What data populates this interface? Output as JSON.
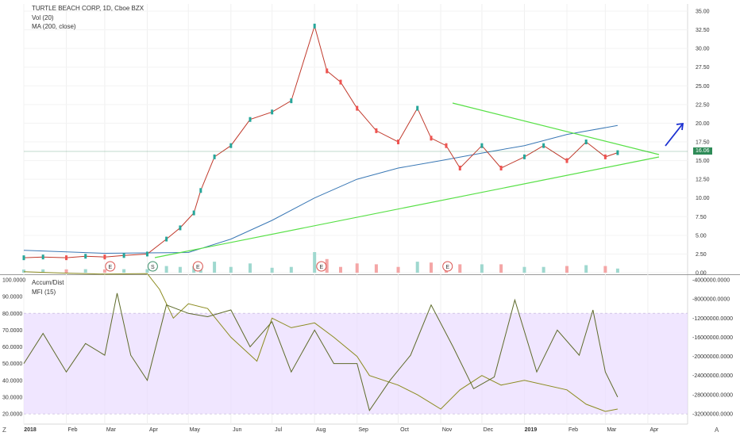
{
  "header": {
    "symbol": "TURTLE BEACH CORP, 1D, Cboe BZX",
    "vol": "Vol (20)",
    "ma": "MA (200, close)",
    "indicator1": "Accum/Dist",
    "indicator2": "MFI (15)"
  },
  "price_badge": "16.06",
  "bottom_left": "Z",
  "bottom_right": "A",
  "chart_data": [
    {
      "type": "line",
      "title": "TURTLE BEACH CORP, 1D, Cboe BZX",
      "yticks": [
        "35.00",
        "32.50",
        "30.00",
        "27.50",
        "25.00",
        "22.50",
        "20.00",
        "17.50",
        "15.00",
        "12.50",
        "10.00",
        "7.50",
        "5.00",
        "2.50",
        "0.00"
      ],
      "ylim": [
        0,
        35
      ],
      "xticks": [
        "2018",
        "Feb",
        "Mar",
        "Apr",
        "May",
        "Jun",
        "Jul",
        "Aug",
        "Sep",
        "Oct",
        "Nov",
        "Dec",
        "2019",
        "Feb",
        "Mar",
        "Apr"
      ],
      "current_price": 16.06,
      "series": [
        {
          "name": "Price",
          "x": [
            "2018-01-01",
            "2018-01-15",
            "2018-02-01",
            "2018-02-15",
            "2018-03-01",
            "2018-03-15",
            "2018-04-01",
            "2018-04-15",
            "2018-04-25",
            "2018-05-05",
            "2018-05-10",
            "2018-05-20",
            "2018-06-01",
            "2018-06-15",
            "2018-07-01",
            "2018-07-15",
            "2018-08-01",
            "2018-08-10",
            "2018-08-20",
            "2018-09-01",
            "2018-09-15",
            "2018-10-01",
            "2018-10-15",
            "2018-10-25",
            "2018-11-05",
            "2018-11-15",
            "2018-12-01",
            "2018-12-15",
            "2019-01-01",
            "2019-01-15",
            "2019-02-01",
            "2019-02-15",
            "2019-03-01",
            "2019-03-10"
          ],
          "values": [
            2.0,
            2.1,
            2.0,
            2.2,
            2.1,
            2.3,
            2.5,
            4.5,
            6.0,
            8.0,
            11.0,
            15.5,
            17.0,
            20.5,
            21.5,
            23.0,
            33.0,
            27.0,
            25.5,
            22.0,
            19.0,
            17.5,
            22.0,
            18.0,
            17.0,
            14.0,
            17.0,
            14.0,
            15.5,
            17.0,
            15.0,
            17.5,
            15.5,
            16.06
          ]
        },
        {
          "name": "MA (200, close)",
          "x": [
            "2018-01-01",
            "2018-03-01",
            "2018-05-01",
            "2018-06-01",
            "2018-07-01",
            "2018-08-01",
            "2018-09-01",
            "2018-10-01",
            "2018-11-01",
            "2018-12-01",
            "2019-01-01",
            "2019-02-01",
            "2019-03-10"
          ],
          "values": [
            3.0,
            2.6,
            2.7,
            4.5,
            7.0,
            10.0,
            12.5,
            14.0,
            15.0,
            16.0,
            17.0,
            18.5,
            19.7
          ]
        }
      ],
      "annotations": [
        "E",
        "S",
        "E",
        "E",
        "E"
      ]
    },
    {
      "type": "line",
      "ylim_left": [
        20,
        100
      ],
      "ylim_right": [
        -32000000,
        -4000000
      ],
      "yticks_left": [
        "100.0000",
        "90.0000",
        "80.0000",
        "70.0000",
        "60.0000",
        "50.0000",
        "40.0000",
        "30.0000",
        "20.0000"
      ],
      "yticks_right": [
        "-4000000.0000",
        "-8000000.0000",
        "-12000000.0000",
        "-16000000.0000",
        "-20000000.0000",
        "-24000000.0000",
        "-28000000.0000",
        "-32000000.0000"
      ],
      "band": [
        20,
        80
      ],
      "series": [
        {
          "name": "Accum/Dist",
          "axis": "right",
          "x": [
            "2018-01-01",
            "2018-02-01",
            "2018-03-01",
            "2018-04-01",
            "2018-04-10",
            "2018-04-20",
            "2018-05-01",
            "2018-05-15",
            "2018-06-01",
            "2018-06-20",
            "2018-07-01",
            "2018-07-15",
            "2018-08-01",
            "2018-08-15",
            "2018-09-01",
            "2018-09-10",
            "2018-10-01",
            "2018-10-15",
            "2018-11-01",
            "2018-11-15",
            "2018-12-01",
            "2018-12-15",
            "2019-01-01",
            "2019-02-01",
            "2019-02-15",
            "2019-03-01",
            "2019-03-10"
          ],
          "values": [
            -2300000,
            -2600000,
            -2800000,
            -2700000,
            -6000000,
            -12000000,
            -9000000,
            -10000000,
            -16000000,
            -21000000,
            -12000000,
            -14000000,
            -13000000,
            -16000000,
            -20000000,
            -24000000,
            -26000000,
            -28000000,
            -31000000,
            -27000000,
            -24000000,
            -26000000,
            -25000000,
            -27000000,
            -30000000,
            -31500000,
            -31000000
          ]
        },
        {
          "name": "MFI (15)",
          "axis": "left",
          "x": [
            "2018-01-01",
            "2018-01-15",
            "2018-02-01",
            "2018-02-15",
            "2018-03-01",
            "2018-03-10",
            "2018-03-20",
            "2018-04-01",
            "2018-04-15",
            "2018-05-01",
            "2018-05-15",
            "2018-06-01",
            "2018-06-15",
            "2018-07-01",
            "2018-07-15",
            "2018-08-01",
            "2018-08-15",
            "2018-09-01",
            "2018-09-10",
            "2018-09-25",
            "2018-10-10",
            "2018-10-25",
            "2018-11-10",
            "2018-11-25",
            "2018-12-10",
            "2018-12-25",
            "2019-01-10",
            "2019-01-25",
            "2019-02-10",
            "2019-02-20",
            "2019-03-01",
            "2019-03-10"
          ],
          "values": [
            50,
            68,
            45,
            62,
            55,
            92,
            55,
            40,
            85,
            80,
            78,
            82,
            60,
            75,
            45,
            70,
            50,
            50,
            22,
            40,
            55,
            85,
            60,
            35,
            42,
            88,
            45,
            70,
            55,
            82,
            45,
            30
          ]
        }
      ]
    }
  ]
}
